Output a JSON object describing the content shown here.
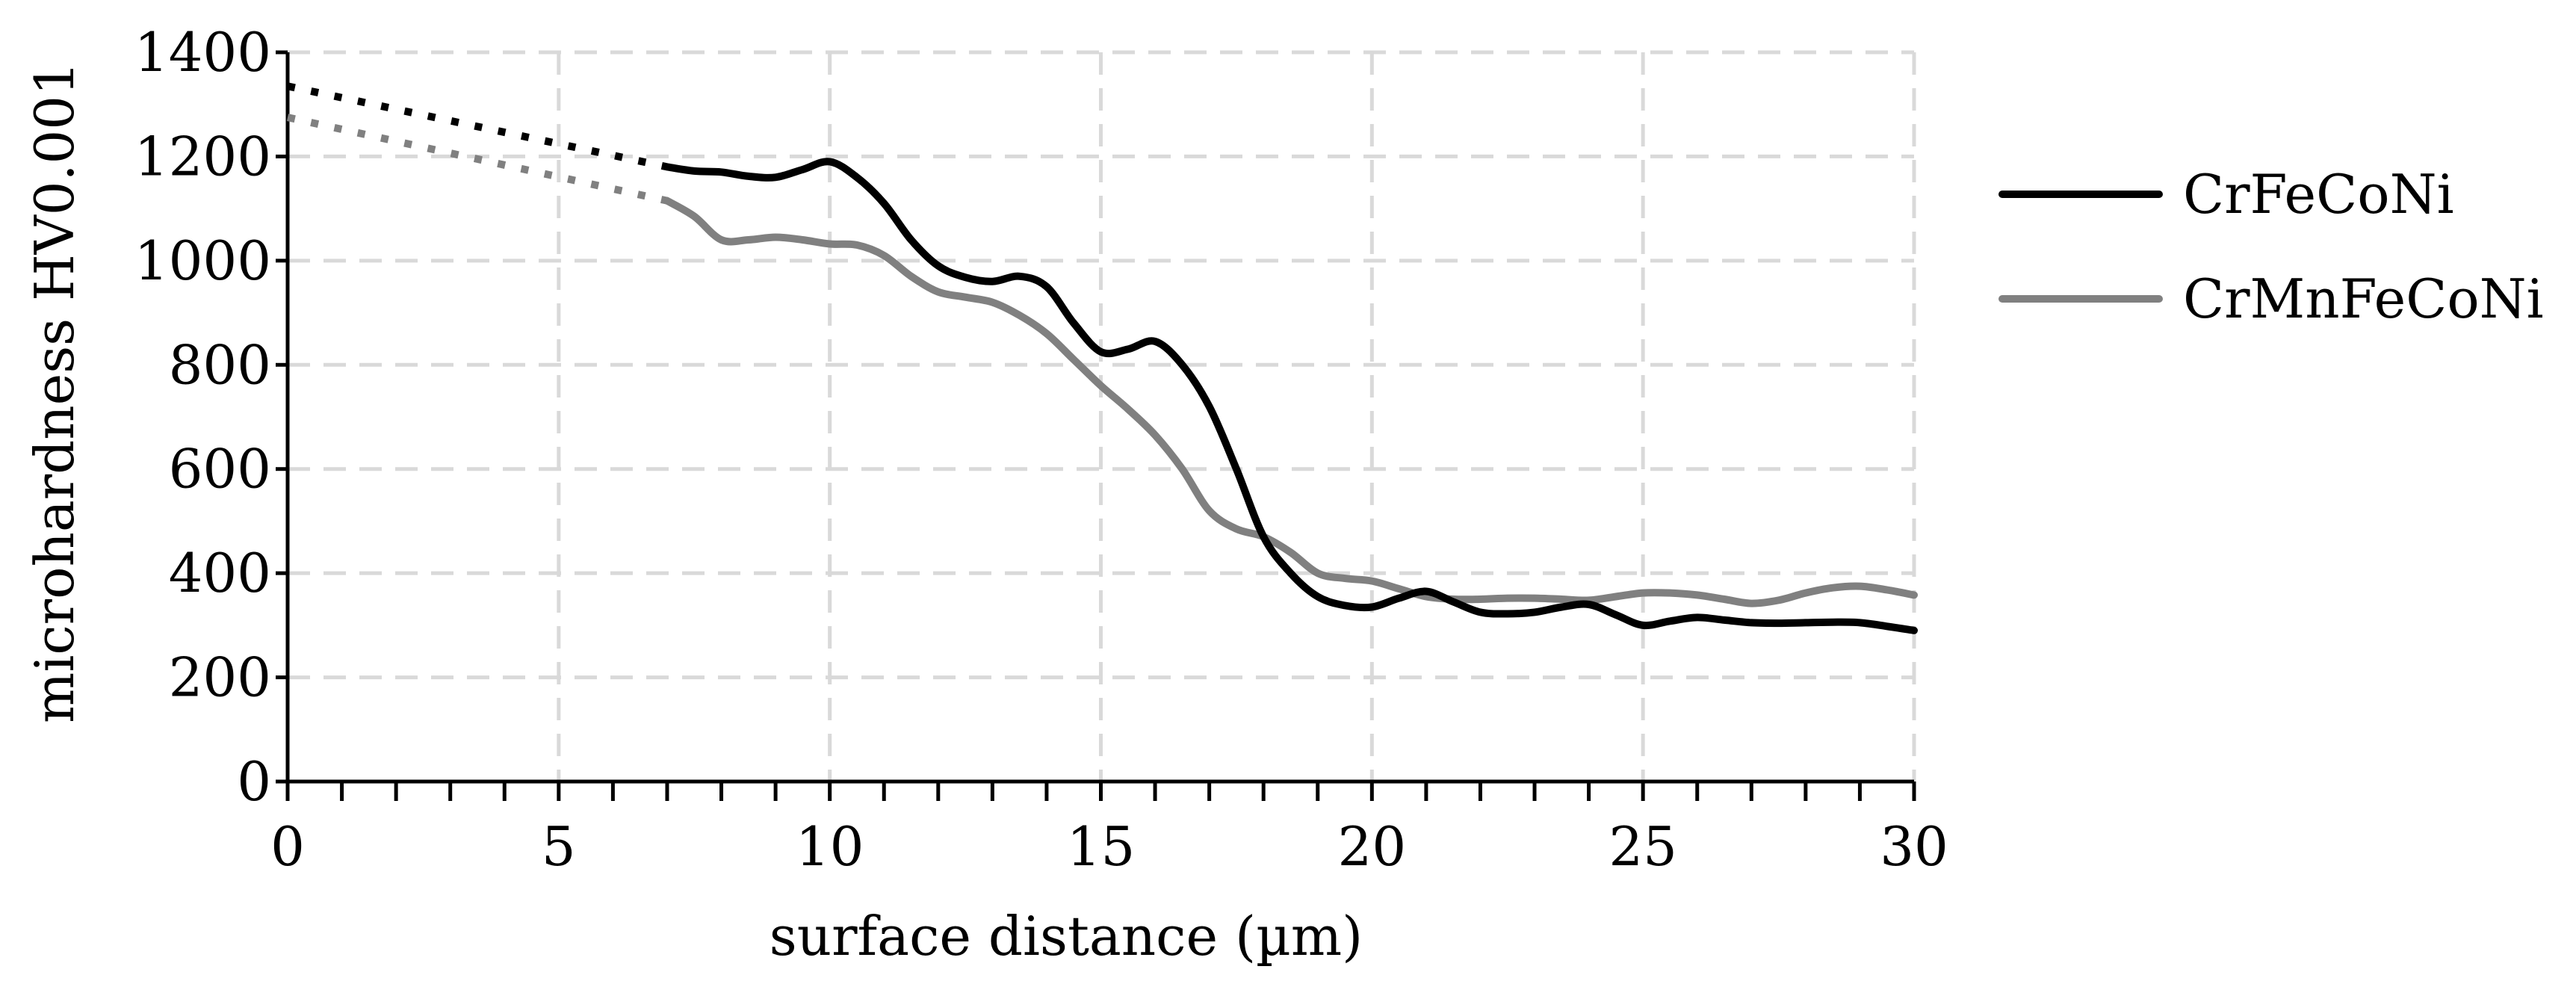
{
  "chart_data": {
    "type": "line",
    "title": "",
    "xlabel": "surface distance (µm)",
    "ylabel": "microhardness HV0.001",
    "xlim": [
      0,
      30
    ],
    "ylim": [
      0,
      1400
    ],
    "xticks": [
      0,
      5,
      10,
      15,
      20,
      25,
      30
    ],
    "yticks": [
      0,
      200,
      400,
      600,
      800,
      1000,
      1200,
      1400
    ],
    "x_minor_step": 1,
    "grid": true,
    "legend_position": "right",
    "series": [
      {
        "name": "CrFeCoNi",
        "color": "#000000",
        "extrapolated": [
          [
            0,
            1335
          ],
          [
            7,
            1180
          ]
        ],
        "values": [
          [
            7,
            1180
          ],
          [
            7.5,
            1172
          ],
          [
            8,
            1170
          ],
          [
            8.5,
            1162
          ],
          [
            9,
            1160
          ],
          [
            9.5,
            1175
          ],
          [
            10,
            1190
          ],
          [
            10.5,
            1160
          ],
          [
            11,
            1110
          ],
          [
            11.5,
            1040
          ],
          [
            12,
            990
          ],
          [
            12.5,
            968
          ],
          [
            13,
            960
          ],
          [
            13.5,
            970
          ],
          [
            14,
            950
          ],
          [
            14.5,
            880
          ],
          [
            15,
            825
          ],
          [
            15.5,
            830
          ],
          [
            16,
            845
          ],
          [
            16.5,
            800
          ],
          [
            17,
            720
          ],
          [
            17.5,
            600
          ],
          [
            18,
            470
          ],
          [
            18.5,
            400
          ],
          [
            19,
            355
          ],
          [
            19.5,
            338
          ],
          [
            20,
            335
          ],
          [
            20.5,
            352
          ],
          [
            21,
            365
          ],
          [
            21.5,
            345
          ],
          [
            22,
            325
          ],
          [
            22.5,
            322
          ],
          [
            23,
            325
          ],
          [
            23.5,
            335
          ],
          [
            24,
            340
          ],
          [
            24.5,
            320
          ],
          [
            25,
            300
          ],
          [
            25.5,
            308
          ],
          [
            26,
            315
          ],
          [
            26.5,
            310
          ],
          [
            27,
            305
          ],
          [
            27.5,
            304
          ],
          [
            28,
            305
          ],
          [
            28.5,
            306
          ],
          [
            29,
            305
          ],
          [
            29.5,
            298
          ],
          [
            30,
            290
          ]
        ]
      },
      {
        "name": "CrMnFeCoNi",
        "color": "#808080",
        "extrapolated": [
          [
            0,
            1275
          ],
          [
            7,
            1115
          ]
        ],
        "values": [
          [
            7,
            1115
          ],
          [
            7.5,
            1085
          ],
          [
            8,
            1040
          ],
          [
            8.5,
            1040
          ],
          [
            9,
            1045
          ],
          [
            9.5,
            1040
          ],
          [
            10,
            1032
          ],
          [
            10.5,
            1030
          ],
          [
            11,
            1010
          ],
          [
            11.5,
            970
          ],
          [
            12,
            940
          ],
          [
            12.5,
            930
          ],
          [
            13,
            920
          ],
          [
            13.5,
            895
          ],
          [
            14,
            860
          ],
          [
            14.5,
            810
          ],
          [
            15,
            760
          ],
          [
            15.5,
            715
          ],
          [
            16,
            665
          ],
          [
            16.5,
            600
          ],
          [
            17,
            520
          ],
          [
            17.5,
            485
          ],
          [
            18,
            470
          ],
          [
            18.5,
            440
          ],
          [
            19,
            400
          ],
          [
            19.5,
            390
          ],
          [
            20,
            385
          ],
          [
            20.5,
            370
          ],
          [
            21,
            355
          ],
          [
            21.5,
            350
          ],
          [
            22,
            350
          ],
          [
            22.5,
            352
          ],
          [
            23,
            352
          ],
          [
            23.5,
            350
          ],
          [
            24,
            348
          ],
          [
            24.5,
            355
          ],
          [
            25,
            362
          ],
          [
            25.5,
            362
          ],
          [
            26,
            358
          ],
          [
            26.5,
            350
          ],
          [
            27,
            342
          ],
          [
            27.5,
            348
          ],
          [
            28,
            362
          ],
          [
            28.5,
            372
          ],
          [
            29,
            375
          ],
          [
            29.5,
            368
          ],
          [
            30,
            358
          ]
        ]
      }
    ]
  }
}
